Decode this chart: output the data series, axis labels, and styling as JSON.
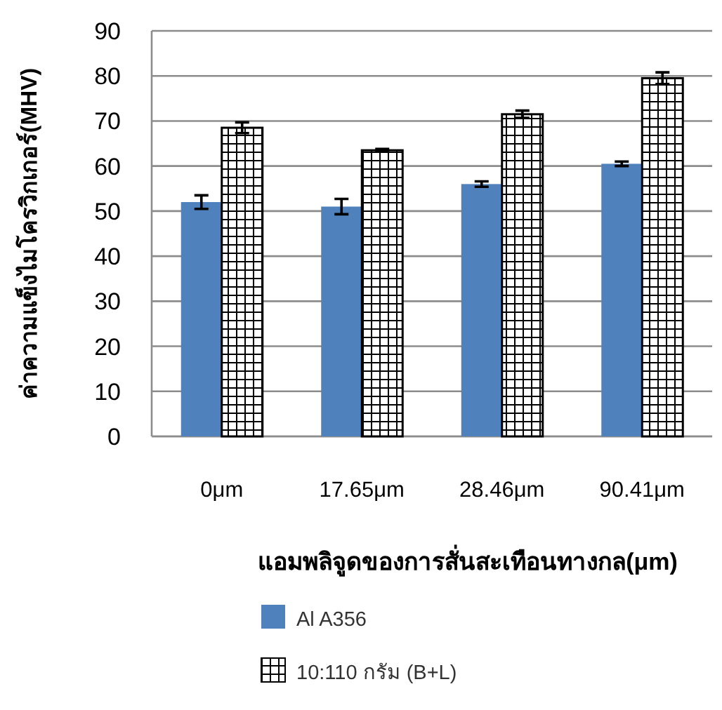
{
  "chart_data": {
    "type": "bar",
    "ylabel": "ค่าความแข็งไมโครวิกเกอร์(MHV)",
    "xlabel": "แอมพลิจูดของการสั่นสะเทือนทางกล(μm)",
    "categories": [
      "0μm",
      "17.65μm",
      "28.46μm",
      "90.41μm"
    ],
    "series": [
      {
        "name": "Al A356",
        "color": "#4f81bd",
        "values": [
          52,
          51,
          56,
          60.5
        ],
        "errors": [
          1.5,
          1.7,
          0.6,
          0.5
        ]
      },
      {
        "name": "10:110 กรัม (B+L)",
        "color": "#000000",
        "values": [
          68.5,
          63.5,
          71.5,
          79.5
        ],
        "errors": [
          1.2,
          0.3,
          0.8,
          1.3
        ]
      }
    ],
    "ylim": [
      0,
      90
    ],
    "yticks": [
      0,
      10,
      20,
      30,
      40,
      50,
      60,
      70,
      80,
      90
    ],
    "grid": "y",
    "legend": "bottom"
  }
}
